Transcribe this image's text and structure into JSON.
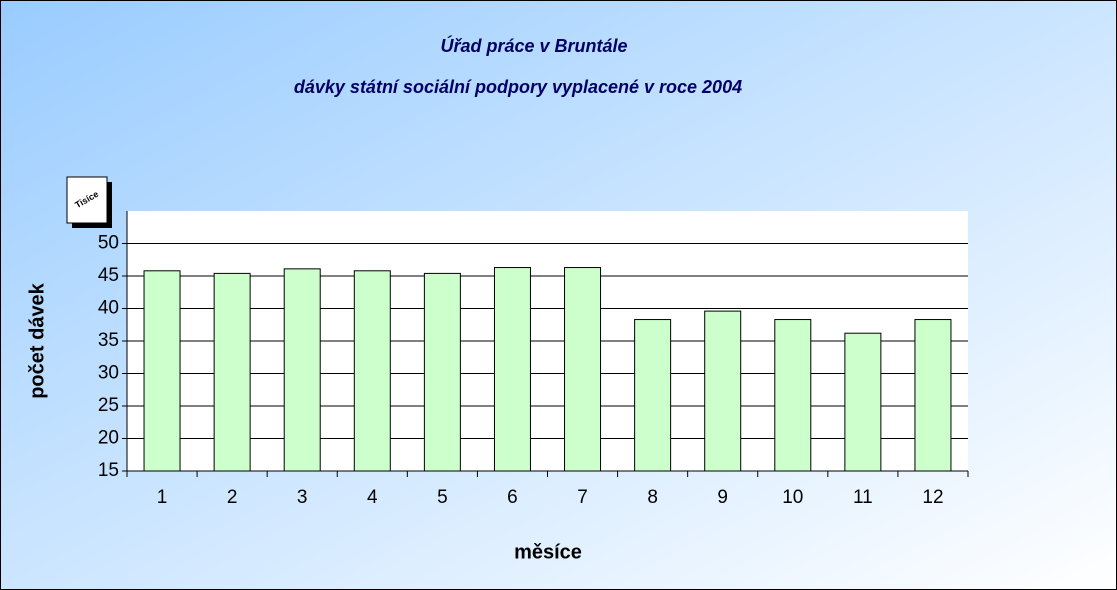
{
  "chart_data": {
    "type": "bar",
    "title": "Úřad práce v Bruntále",
    "subtitle": "dávky státní sociální podpory vyplacené v roce 2004",
    "units_label": "Tisíce",
    "y_label": "počet dávek",
    "x_label": "měsíce",
    "categories": [
      "1",
      "2",
      "3",
      "4",
      "5",
      "6",
      "7",
      "8",
      "9",
      "10",
      "11",
      "12"
    ],
    "values": [
      45.8,
      45.4,
      46.1,
      45.8,
      45.4,
      46.3,
      46.3,
      38.3,
      39.6,
      38.3,
      36.2,
      38.3
    ],
    "color": "#ccffcc",
    "ylim": [
      15,
      55
    ],
    "yticks": [
      15,
      20,
      25,
      30,
      35,
      40,
      45,
      50
    ],
    "grid": true
  }
}
